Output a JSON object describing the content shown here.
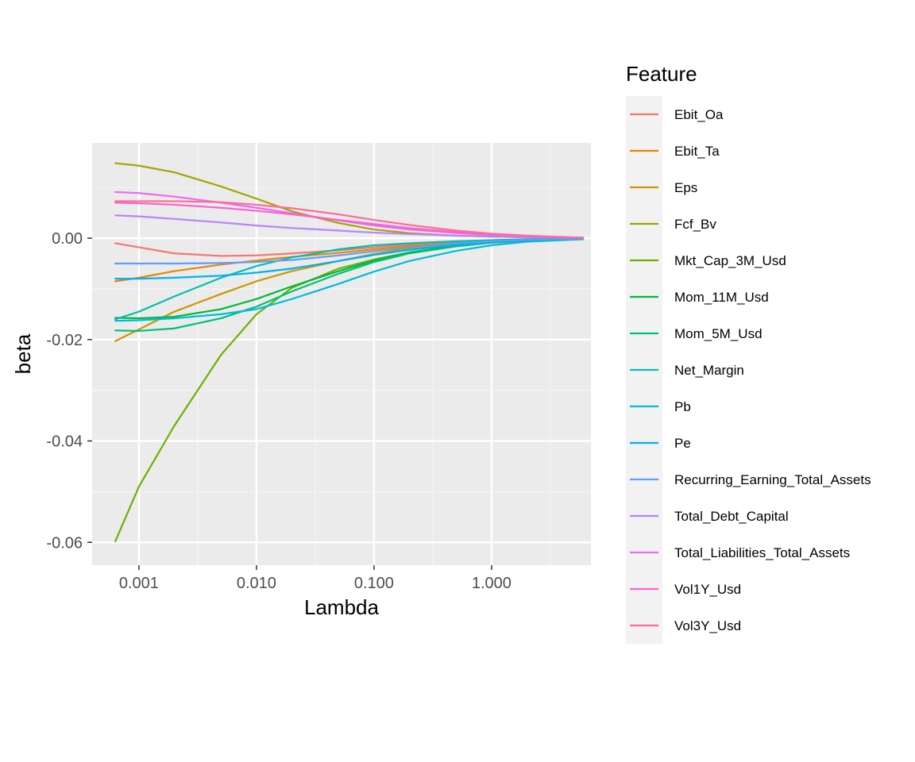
{
  "chart_data": {
    "type": "line",
    "title": "",
    "xlabel": "Lambda",
    "ylabel": "beta",
    "x_scale": "log10",
    "xlim": [
      0.0004,
      7.0
    ],
    "ylim": [
      -0.0645,
      0.0188
    ],
    "x_ticks": [
      0.001,
      0.01,
      0.1,
      1.0
    ],
    "x_tick_labels": [
      "0.001",
      "0.010",
      "0.100",
      "1.000"
    ],
    "y_ticks": [
      0.0,
      -0.02,
      -0.04,
      -0.06
    ],
    "y_tick_labels": [
      "0.00",
      "-0.02",
      "-0.04",
      "-0.06"
    ],
    "grid": true,
    "legend_title": "Feature",
    "legend_position": "right",
    "x": [
      0.00063,
      0.001,
      0.002,
      0.005,
      0.01,
      0.02,
      0.05,
      0.1,
      0.2,
      0.5,
      1.0,
      2.0,
      6.0
    ],
    "series": [
      {
        "name": "Ebit_Oa",
        "color": "#F8766D",
        "values": [
          -0.001,
          -0.0018,
          -0.003,
          -0.0035,
          -0.0034,
          -0.003,
          -0.0024,
          -0.0018,
          -0.0012,
          -0.0007,
          -0.0004,
          -0.0002,
          -0.0001
        ]
      },
      {
        "name": "Ebit_Ta",
        "color": "#E58700",
        "values": [
          -0.0085,
          -0.0078,
          -0.0065,
          -0.0052,
          -0.0044,
          -0.0037,
          -0.0029,
          -0.0022,
          -0.0015,
          -0.0009,
          -0.0005,
          -0.0003,
          -0.0001
        ]
      },
      {
        "name": "Eps",
        "color": "#C99800",
        "values": [
          -0.0203,
          -0.018,
          -0.0145,
          -0.011,
          -0.0085,
          -0.0065,
          -0.0045,
          -0.0031,
          -0.002,
          -0.0011,
          -0.0006,
          -0.0003,
          -0.0001
        ]
      },
      {
        "name": "Fcf_Bv",
        "color": "#A3A500",
        "values": [
          0.0148,
          0.0143,
          0.013,
          0.0102,
          0.0078,
          0.0053,
          0.003,
          0.0017,
          0.001,
          0.0005,
          0.0003,
          0.0002,
          0.0001
        ]
      },
      {
        "name": "Mkt_Cap_3M_Usd",
        "color": "#6BB100",
        "values": [
          -0.0598,
          -0.049,
          -0.037,
          -0.023,
          -0.015,
          -0.0098,
          -0.006,
          -0.0042,
          -0.0028,
          -0.0016,
          -0.0009,
          -0.0005,
          -0.0002
        ]
      },
      {
        "name": "Mom_11M_Usd",
        "color": "#00BA38",
        "values": [
          -0.0157,
          -0.0158,
          -0.0155,
          -0.014,
          -0.012,
          -0.0095,
          -0.0065,
          -0.0044,
          -0.0028,
          -0.0015,
          -0.0008,
          -0.0004,
          -0.0001
        ]
      },
      {
        "name": "Mom_5M_Usd",
        "color": "#00BF7D",
        "values": [
          -0.0182,
          -0.0183,
          -0.0178,
          -0.0158,
          -0.0135,
          -0.0105,
          -0.007,
          -0.0047,
          -0.003,
          -0.0016,
          -0.0009,
          -0.0004,
          -0.0001
        ]
      },
      {
        "name": "Net_Margin",
        "color": "#00C0AF",
        "values": [
          -0.016,
          -0.0145,
          -0.0115,
          -0.0078,
          -0.0055,
          -0.0038,
          -0.0022,
          -0.0014,
          -0.001,
          -0.0006,
          -0.0004,
          -0.0002,
          -0.0001
        ]
      },
      {
        "name": "Pb",
        "color": "#00BCD8",
        "values": [
          -0.0163,
          -0.0162,
          -0.0158,
          -0.015,
          -0.014,
          -0.012,
          -0.009,
          -0.0066,
          -0.0045,
          -0.0025,
          -0.0014,
          -0.0007,
          -0.0002
        ]
      },
      {
        "name": "Pe",
        "color": "#00B0F6",
        "values": [
          -0.008,
          -0.008,
          -0.0078,
          -0.0074,
          -0.0068,
          -0.006,
          -0.0045,
          -0.0033,
          -0.0023,
          -0.0013,
          -0.0008,
          -0.0004,
          -0.0001
        ]
      },
      {
        "name": "Recurring_Earning_Total_Assets",
        "color": "#619CFF",
        "values": [
          -0.005,
          -0.005,
          -0.005,
          -0.0049,
          -0.0047,
          -0.0043,
          -0.0034,
          -0.0026,
          -0.0018,
          -0.001,
          -0.0006,
          -0.0003,
          -0.0001
        ]
      },
      {
        "name": "Total_Debt_Capital",
        "color": "#B983FF",
        "values": [
          0.0045,
          0.0043,
          0.0038,
          0.0031,
          0.0025,
          0.002,
          0.0015,
          0.0011,
          0.0008,
          0.0005,
          0.0003,
          0.0002,
          0.0001
        ]
      },
      {
        "name": "Total_Liabilities_Total_Assets",
        "color": "#E76BF3",
        "values": [
          0.0091,
          0.0089,
          0.0082,
          0.007,
          0.006,
          0.0049,
          0.0035,
          0.0025,
          0.0017,
          0.001,
          0.0006,
          0.0003,
          0.0001
        ]
      },
      {
        "name": "Vol1Y_Usd",
        "color": "#FD61D1",
        "values": [
          0.007,
          0.0069,
          0.0066,
          0.006,
          0.0054,
          0.0047,
          0.0036,
          0.0028,
          0.002,
          0.0012,
          0.0007,
          0.0004,
          0.0001
        ]
      },
      {
        "name": "Vol3Y_Usd",
        "color": "#FF6C91",
        "values": [
          0.0073,
          0.0073,
          0.0073,
          0.0071,
          0.0066,
          0.0059,
          0.0047,
          0.0036,
          0.0026,
          0.0015,
          0.0009,
          0.0005,
          0.0001
        ]
      }
    ]
  }
}
